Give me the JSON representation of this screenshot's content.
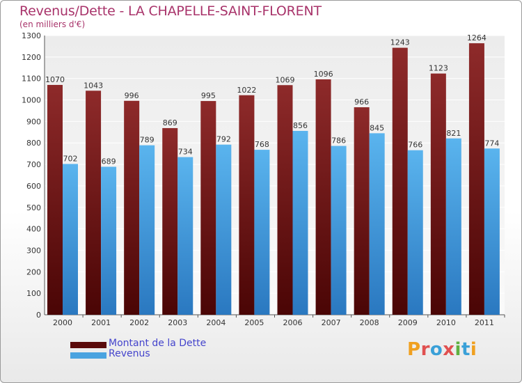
{
  "chart_data": {
    "type": "bar",
    "title": "Revenus/Dette - LA CHAPELLE-SAINT-FLORENT",
    "subtitle": "(en milliers d'€)",
    "xlabel": "",
    "ylabel": "",
    "ylim": [
      0,
      1300
    ],
    "yticks": [
      0,
      100,
      200,
      300,
      400,
      500,
      600,
      700,
      800,
      900,
      1000,
      1100,
      1200,
      1300
    ],
    "categories": [
      "2000",
      "2001",
      "2002",
      "2003",
      "2004",
      "2005",
      "2006",
      "2007",
      "2008",
      "2009",
      "2010",
      "2011"
    ],
    "series": [
      {
        "name": "Montant de la Dette",
        "color": "#7a1a1a",
        "values": [
          1070,
          1043,
          996,
          869,
          995,
          1022,
          1069,
          1096,
          966,
          1243,
          1123,
          1264
        ]
      },
      {
        "name": "Revenus",
        "color": "#4aa3e0",
        "values": [
          702,
          689,
          789,
          734,
          792,
          768,
          856,
          786,
          845,
          766,
          821,
          774
        ]
      }
    ],
    "grid": true,
    "legend_position": "bottom-left"
  },
  "logo_text": "Proxiti"
}
